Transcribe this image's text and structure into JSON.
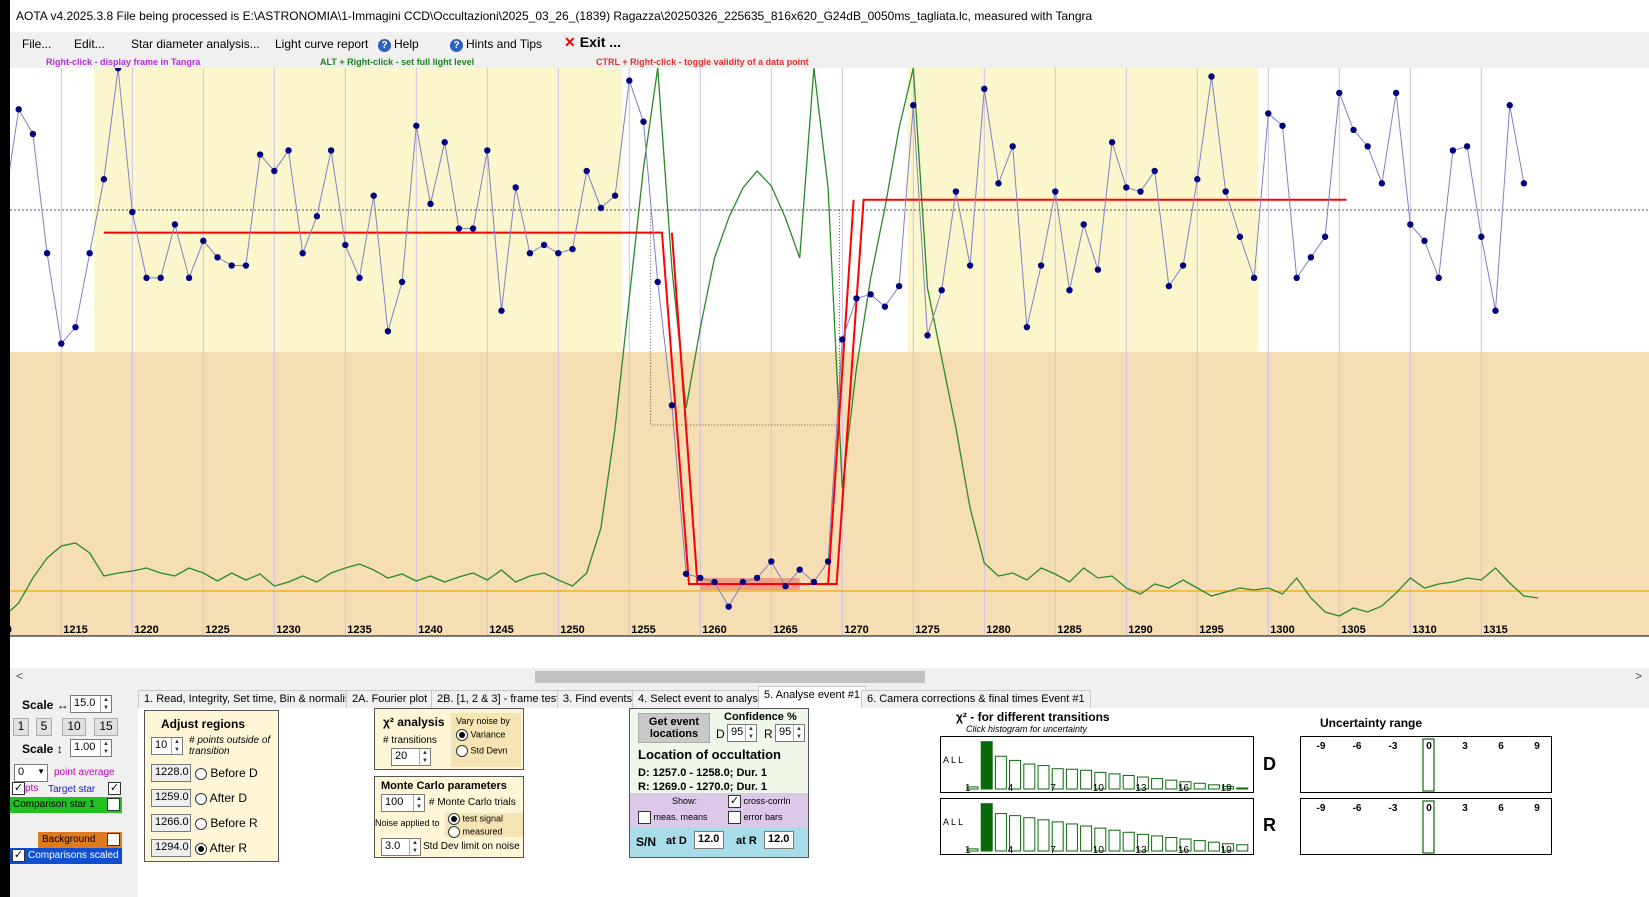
{
  "title": "AOTA v4.2025.3.8    File being processed is E:\\ASTRONOMIA\\1-Immagini CCD\\Occultazioni\\2025_03_26_(1839) Ragazza\\20250326_225635_816x620_G24dB_0050ms_tagliata.lc, measured with Tangra",
  "menu": {
    "file": "File...",
    "edit": "Edit...",
    "star_diameter": "Star diameter analysis...",
    "light_curve_report": "Light curve report",
    "help": "Help",
    "hints": "Hints and Tips",
    "exit": "Exit ..."
  },
  "hints": {
    "right_click": "Right-click  -  display frame in Tangra",
    "alt_right_click": "ALT + Right-click  -  set full light level",
    "ctrl_right_click": "CTRL + Right-click  -  toggle validity of a data point"
  },
  "colors": {
    "plot_yellow": "#fcf6cd",
    "plot_tan": "#f5deb3",
    "data_points": "#000080",
    "data_line": "#8080c0",
    "model_red": "#ff0000",
    "green_curve": "#2a8a2a",
    "baseline_orange": "#f0b030"
  },
  "chart_data": {
    "type": "line",
    "x_tick_labels": [
      "0",
      "1215",
      "1220",
      "1225",
      "1230",
      "1235",
      "1240",
      "1245",
      "1250",
      "1255",
      "1260",
      "1265",
      "1270",
      "1275",
      "1280",
      "1285",
      "1290",
      "1295",
      "1300",
      "1305",
      "1310",
      "1315"
    ],
    "x": [
      1210,
      1211,
      1212,
      1213,
      1214,
      1215,
      1216,
      1217,
      1218,
      1219,
      1220,
      1221,
      1222,
      1223,
      1224,
      1225,
      1226,
      1227,
      1228,
      1229,
      1230,
      1231,
      1232,
      1233,
      1234,
      1235,
      1236,
      1237,
      1238,
      1239,
      1240,
      1241,
      1242,
      1243,
      1244,
      1245,
      1246,
      1247,
      1248,
      1249,
      1250,
      1251,
      1252,
      1253,
      1254,
      1255,
      1256,
      1257,
      1258,
      1259,
      1260,
      1261,
      1262,
      1263,
      1264,
      1265,
      1266,
      1267,
      1268,
      1269,
      1270,
      1271,
      1272,
      1273,
      1274,
      1275,
      1276,
      1277,
      1278,
      1279,
      1280,
      1281,
      1282,
      1283,
      1284,
      1285,
      1286,
      1287,
      1288,
      1289,
      1290,
      1291,
      1292,
      1293,
      1294,
      1295,
      1296,
      1297,
      1298,
      1299,
      1300,
      1301,
      1302,
      1303,
      1304,
      1305,
      1306,
      1307,
      1308,
      1309,
      1310,
      1311,
      1312,
      1313,
      1314,
      1315,
      1316,
      1317,
      1318
    ],
    "light_curve": [
      0.92,
      1.15,
      1.09,
      0.8,
      0.58,
      0.62,
      0.8,
      0.98,
      1.25,
      0.9,
      0.74,
      0.74,
      0.87,
      0.74,
      0.83,
      0.79,
      0.77,
      0.77,
      1.04,
      1.0,
      1.05,
      0.8,
      0.89,
      1.05,
      0.82,
      0.74,
      0.94,
      0.61,
      0.73,
      1.11,
      0.92,
      1.07,
      0.86,
      0.86,
      1.05,
      0.66,
      0.96,
      0.8,
      0.82,
      0.8,
      0.81,
      1.0,
      0.91,
      0.94,
      1.22,
      1.12,
      0.73,
      0.43,
      0.02,
      0.01,
      0.0,
      -0.06,
      0.0,
      0.01,
      0.05,
      -0.01,
      0.03,
      0.0,
      0.05,
      0.59,
      0.69,
      0.7,
      0.67,
      0.72,
      1.16,
      0.6,
      0.71,
      0.95,
      0.77,
      1.2,
      0.97,
      1.06,
      0.62,
      0.77,
      0.95,
      0.71,
      0.87,
      0.76,
      1.07,
      0.96,
      0.95,
      1.0,
      0.72,
      0.77,
      0.98,
      1.23,
      0.95,
      0.84,
      0.74,
      1.14,
      1.11,
      0.74,
      0.79,
      0.84,
      1.19,
      1.1,
      1.06,
      0.97,
      1.19,
      0.87,
      0.83,
      0.74,
      1.05,
      1.06,
      0.84,
      0.66,
      1.16,
      0.97
    ],
    "model_levels": {
      "full": 0.85,
      "occulted": 0.0,
      "disappearance": 1257.5,
      "reappearance": 1269.5
    },
    "ylabel": "",
    "xlabel": ""
  },
  "scroll_left": "<",
  "scroll_right": ">",
  "left": {
    "scale_h_label": "Scale ↔",
    "scale_h_value": "15.0",
    "scale_buttons": [
      "1",
      "5",
      "10",
      "15"
    ],
    "scale_v_label": "Scale ↕",
    "scale_v_value": "1.00",
    "point_avg_value": "0",
    "point_avg_label": "point average",
    "pts_label": "pts",
    "target_star": "Target star",
    "comparison_star": "Comparison star 1",
    "background": "Background",
    "comparisons_scaled": "Comparisons scaled"
  },
  "tabs": [
    "1. Read, Integrity, Set time, Bin & normalise",
    "2A. Fourier plot",
    "2B. [1, 2 & 3] - frame test",
    "3. Find events",
    "4. Select event to analyse",
    "5. Analyse event #1",
    "6. Camera corrections & final times Event #1"
  ],
  "adjust": {
    "title": "Adjust regions",
    "points_value": "10",
    "points_label": "# points outside of transition",
    "before_d_val": "1228.0",
    "before_d": "Before D",
    "after_d_val": "1259.0",
    "after_d": "After D",
    "before_r_val": "1266.0",
    "before_r": "Before R",
    "after_r_val": "1294.0",
    "after_r": "After R"
  },
  "chi2": {
    "title": "χ² analysis",
    "transitions_label": "# transitions",
    "transitions_value": "20",
    "vary_noise": "Vary noise by",
    "variance": "Variance",
    "std_devn": "Std Devn"
  },
  "monte": {
    "title": "Monte Carlo parameters",
    "trials_value": "100",
    "trials_label": "# Monte Carlo trials",
    "noise_applied": "Noise applied to",
    "test_signal": "test signal",
    "measured": "measured",
    "std_value": "3.0",
    "std_label": "Std Dev limit on noise"
  },
  "event": {
    "get_locations": "Get event locations",
    "confidence": "Confidence %",
    "d_label": "D",
    "d_value": "95",
    "r_label": "R",
    "r_value": "95",
    "location_title": "Location of occultation",
    "d_line": "D: 1257.0 - 1258.0; Dur. 1",
    "r_line": "R: 1269.0 - 1270.0; Dur. 1",
    "show": "Show:",
    "cross_corr": "cross-corrln",
    "meas_means": "meas. means",
    "error_bars": "error bars",
    "sn": "S/N",
    "at_d": "at D",
    "at_d_value": "12.0",
    "at_r": "at R",
    "at_r_value": "12.0"
  },
  "chi_hist": {
    "title": "χ² - for different transitions",
    "subtitle": "Click histogram for uncertainty",
    "all": "ALL",
    "ticks": [
      "1",
      "4",
      "7",
      "10",
      "13",
      "16",
      "19"
    ],
    "d_label": "D",
    "r_label": "R",
    "d_bars": [
      4,
      91,
      63,
      55,
      48,
      45,
      39,
      38,
      36,
      32,
      29,
      26,
      23,
      20,
      17,
      14,
      11,
      8,
      5,
      2
    ],
    "r_bars": [
      4,
      91,
      72,
      68,
      64,
      60,
      56,
      52,
      48,
      44,
      40,
      36,
      32,
      29,
      26,
      23,
      20,
      17,
      14,
      12
    ]
  },
  "uncertainty": {
    "title": "Uncertainty range",
    "ticks": [
      "-9",
      "-6",
      "-3",
      "0",
      "3",
      "6",
      "9"
    ]
  }
}
